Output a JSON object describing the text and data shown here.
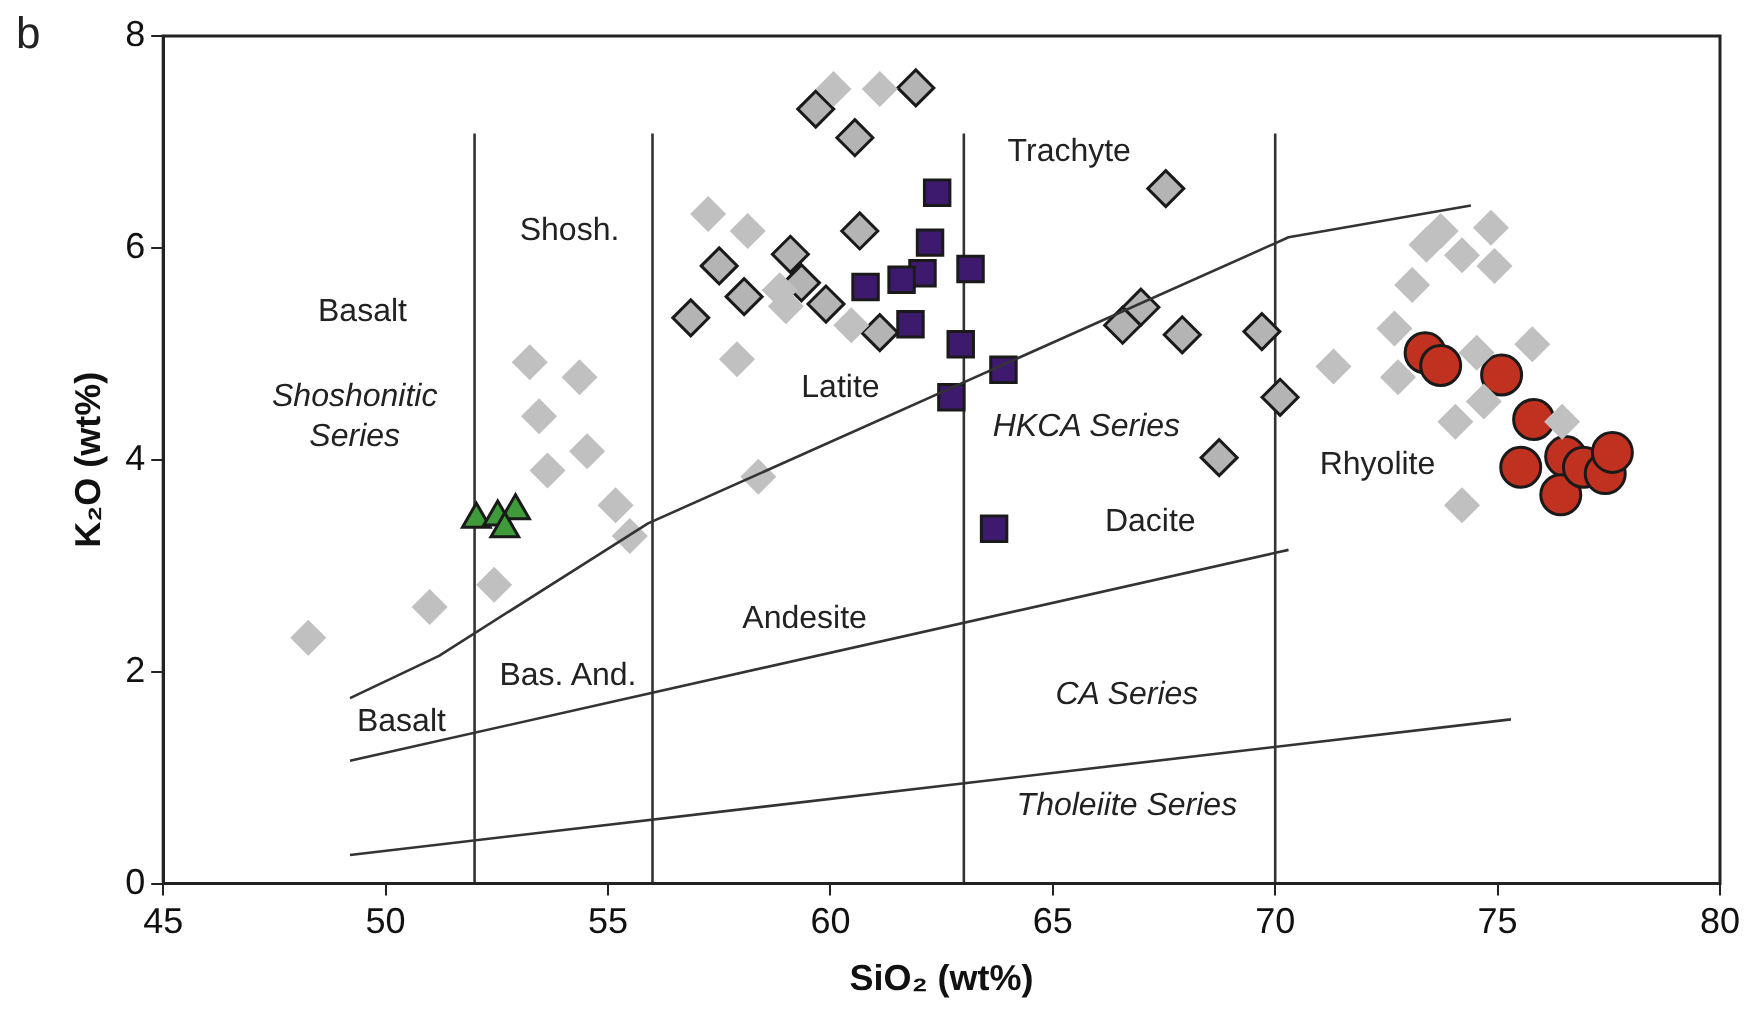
{
  "chart_data": {
    "type": "scatter",
    "xlabel": "SiO₂ (wt%)",
    "ylabel": "K₂O (wt%)",
    "xlim": [
      45,
      80
    ],
    "xticks": [
      45,
      50,
      55,
      60,
      65,
      70,
      75,
      80
    ],
    "ylim": [
      0,
      8
    ],
    "yticks": [
      0,
      2,
      4,
      6,
      8
    ],
    "legend": false,
    "series": [
      {
        "type": "line",
        "color": "#333333",
        "marker": "none",
        "x": [
          49.2,
          51.2,
          55.9,
          70.3,
          74.4
        ],
        "values": [
          1.75,
          2.15,
          3.4,
          6.1,
          6.4
        ]
      },
      {
        "type": "line",
        "color": "#333333",
        "marker": "none",
        "x": [
          49.2,
          70.3
        ],
        "values": [
          1.16,
          3.15
        ]
      },
      {
        "type": "line",
        "color": "#333333",
        "marker": "none",
        "x": [
          49.2,
          75.3
        ],
        "values": [
          0.27,
          1.55
        ]
      },
      {
        "type": "scatter",
        "color": "#c0c0c0",
        "marker": "diamond",
        "x": [
          48.26,
          50.99,
          52.44,
          53.24,
          54.36,
          53.45,
          54.53,
          53.64,
          55.17,
          55.49,
          57.25,
          60.07,
          61.11,
          58.14,
          59.0,
          60.47,
          57.9,
          58.86,
          58.38,
          73.72,
          73.4,
          74.85,
          74.93,
          74.2,
          73.08,
          72.68,
          71.31,
          72.76,
          74.53,
          75.78,
          74.05,
          74.69,
          76.45,
          74.2
        ],
        "values": [
          2.32,
          2.61,
          2.82,
          4.92,
          4.78,
          4.41,
          4.08,
          3.9,
          3.57,
          3.28,
          6.32,
          7.5,
          7.5,
          6.16,
          5.45,
          5.27,
          4.95,
          5.6,
          3.84,
          6.16,
          6.03,
          6.19,
          5.83,
          5.93,
          5.65,
          5.24,
          4.88,
          4.78,
          5.01,
          5.09,
          4.36,
          4.55,
          4.36,
          3.57
        ]
      },
      {
        "type": "scatter",
        "color": "#b4b4b4",
        "marker": "diamond",
        "x": [
          59.67,
          61.92,
          60.55,
          67.54,
          60.66,
          59.1,
          57.5,
          58.06,
          59.35,
          59.9,
          61.11,
          56.86,
          66.57,
          66.98,
          67.91,
          69.7,
          68.74,
          70.11
        ],
        "values": [
          7.31,
          7.51,
          7.04,
          6.56,
          6.16,
          5.94,
          5.83,
          5.54,
          5.67,
          5.47,
          5.2,
          5.34,
          5.27,
          5.44,
          5.18,
          5.21,
          4.02,
          4.59
        ]
      },
      {
        "type": "scatter",
        "color": "#3d1a6e",
        "marker": "square",
        "x": [
          62.4,
          62.24,
          62.07,
          63.15,
          60.79,
          61.6,
          61.8,
          62.93,
          63.89,
          62.72,
          63.68
        ],
        "values": [
          6.52,
          6.05,
          5.76,
          5.8,
          5.63,
          5.7,
          5.28,
          5.09,
          4.85,
          4.59,
          3.35
        ]
      },
      {
        "type": "scatter",
        "color": "#c0321f",
        "marker": "circle",
        "x": [
          73.37,
          73.72,
          75.09,
          75.81,
          75.52,
          76.53,
          76.42,
          76.93,
          77.42,
          77.58
        ],
        "values": [
          5.01,
          4.89,
          4.8,
          4.38,
          3.93,
          4.03,
          3.67,
          3.93,
          3.87,
          4.07
        ]
      },
      {
        "type": "scatter",
        "color": "#3f9a3a",
        "marker": "triangle",
        "x": [
          52.04,
          52.52,
          52.92,
          52.68
        ],
        "values": [
          3.44,
          3.46,
          3.52,
          3.35
        ]
      }
    ],
    "ref_lines": [
      {
        "axis": "x",
        "value": 52,
        "color": "#333333"
      },
      {
        "axis": "x",
        "value": 56,
        "color": "#333333"
      },
      {
        "axis": "x",
        "value": 63,
        "color": "#333333"
      },
      {
        "axis": "x",
        "value": 70,
        "color": "#333333"
      }
    ],
    "annotations": [
      "b",
      "Basalt",
      "Shoshonitic Series",
      "Shosh.",
      "Bas. And.",
      "Basalt",
      "Trachyte",
      "Latite",
      "HKCA Series",
      "Dacite",
      "Andesite",
      "CA Series",
      "Tholeiite Series",
      "Rhyolite"
    ]
  }
}
